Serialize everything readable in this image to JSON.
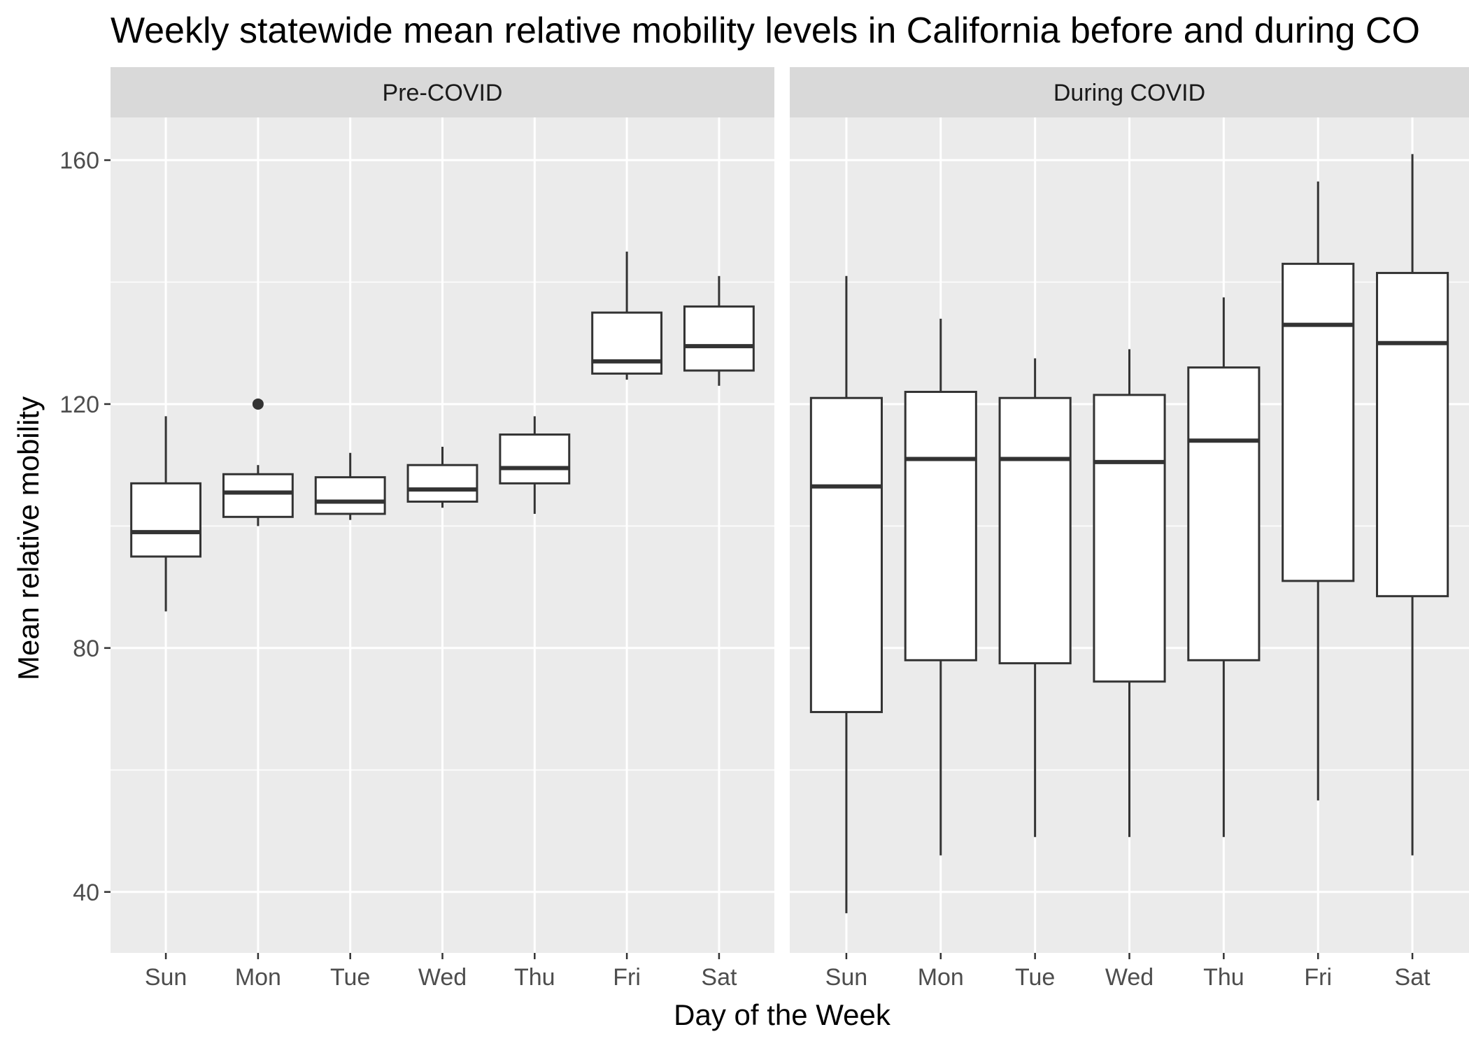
{
  "chart_data": {
    "type": "boxplot",
    "title": "Weekly statewide mean relative mobility levels in California before and during CO",
    "xlabel": "Day of the Week",
    "ylabel": "Mean relative mobility",
    "ylim": [
      30,
      167
    ],
    "y_ticks": [
      40,
      80,
      120,
      160
    ],
    "categories": [
      "Sun",
      "Mon",
      "Tue",
      "Wed",
      "Thu",
      "Fri",
      "Sat"
    ],
    "grid": true,
    "panels": [
      {
        "name": "Pre-COVID",
        "boxes": [
          {
            "day": "Sun",
            "min": 86,
            "q1": 95,
            "median": 99,
            "q3": 107,
            "max": 118,
            "outliers": []
          },
          {
            "day": "Mon",
            "min": 100,
            "q1": 101.5,
            "median": 105.5,
            "q3": 108.5,
            "max": 110,
            "outliers": [
              120
            ]
          },
          {
            "day": "Tue",
            "min": 101,
            "q1": 102,
            "median": 104,
            "q3": 108,
            "max": 112,
            "outliers": []
          },
          {
            "day": "Wed",
            "min": 103,
            "q1": 104,
            "median": 106,
            "q3": 110,
            "max": 113,
            "outliers": []
          },
          {
            "day": "Thu",
            "min": 102,
            "q1": 107,
            "median": 109.5,
            "q3": 115,
            "max": 118,
            "outliers": []
          },
          {
            "day": "Fri",
            "min": 124,
            "q1": 125,
            "median": 127,
            "q3": 135,
            "max": 145,
            "outliers": []
          },
          {
            "day": "Sat",
            "min": 123,
            "q1": 125.5,
            "median": 129.5,
            "q3": 136,
            "max": 141,
            "outliers": []
          }
        ]
      },
      {
        "name": "During COVID",
        "boxes": [
          {
            "day": "Sun",
            "min": 36.5,
            "q1": 69.5,
            "median": 106.5,
            "q3": 121,
            "max": 141,
            "outliers": []
          },
          {
            "day": "Mon",
            "min": 46,
            "q1": 78,
            "median": 111,
            "q3": 122,
            "max": 134,
            "outliers": []
          },
          {
            "day": "Tue",
            "min": 49,
            "q1": 77.5,
            "median": 111,
            "q3": 121,
            "max": 127.5,
            "outliers": []
          },
          {
            "day": "Wed",
            "min": 49,
            "q1": 74.5,
            "median": 110.5,
            "q3": 121.5,
            "max": 129,
            "outliers": []
          },
          {
            "day": "Thu",
            "min": 49,
            "q1": 78,
            "median": 114,
            "q3": 126,
            "max": 137.5,
            "outliers": []
          },
          {
            "day": "Fri",
            "min": 55,
            "q1": 91,
            "median": 133,
            "q3": 143,
            "max": 156.5,
            "outliers": []
          },
          {
            "day": "Sat",
            "min": 46,
            "q1": 88.5,
            "median": 130,
            "q3": 141.5,
            "max": 161,
            "outliers": []
          }
        ]
      }
    ]
  }
}
